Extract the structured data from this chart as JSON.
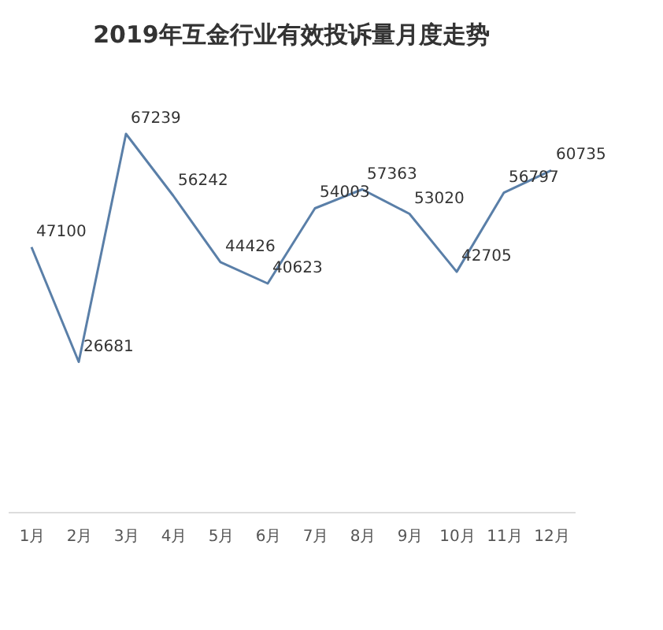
{
  "chart_data": {
    "type": "line",
    "title": "2019年互金行业有效投诉量月度走势",
    "categories": [
      "1月",
      "2月",
      "3月",
      "4月",
      "5月",
      "6月",
      "7月",
      "8月",
      "9月",
      "10月",
      "11月",
      "12月"
    ],
    "series": [
      {
        "color": "#5a7fa8",
        "values": [
          47100,
          26681,
          67239,
          56242,
          44426,
          40623,
          54003,
          57363,
          53020,
          42705,
          56797,
          60735
        ]
      }
    ],
    "data_labels": true,
    "grid": false,
    "legend": false,
    "marker": "none",
    "tick_labels": "x"
  }
}
